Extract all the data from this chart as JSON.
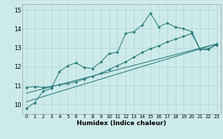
{
  "xlabel": "Humidex (Indice chaleur)",
  "xlim": [
    -0.5,
    23.5
  ],
  "ylim": [
    9.5,
    15.3
  ],
  "xticks": [
    0,
    1,
    2,
    3,
    4,
    5,
    6,
    7,
    8,
    9,
    10,
    11,
    12,
    13,
    14,
    15,
    16,
    17,
    18,
    19,
    20,
    21,
    22,
    23
  ],
  "yticks": [
    10,
    11,
    12,
    13,
    14,
    15
  ],
  "bg_color": "#cdeaea",
  "grid_color": "#add4d4",
  "line_color": "#2d7d7d",
  "wavy_x": [
    0,
    1,
    2,
    3,
    4,
    5,
    6,
    7,
    8,
    9,
    10,
    11,
    12,
    13,
    14,
    15,
    16,
    17,
    18,
    19,
    20,
    21,
    22,
    23
  ],
  "wavy_y": [
    9.8,
    10.1,
    10.7,
    10.85,
    11.75,
    12.05,
    12.2,
    11.95,
    11.9,
    12.25,
    12.7,
    12.75,
    13.75,
    13.85,
    14.2,
    14.82,
    14.1,
    14.3,
    14.1,
    14.0,
    13.85,
    12.9,
    12.9,
    13.2
  ],
  "smooth_x": [
    0,
    1,
    2,
    3,
    4,
    5,
    6,
    7,
    8,
    9,
    10,
    11,
    12,
    13,
    14,
    15,
    16,
    17,
    18,
    19,
    20,
    21,
    22,
    23
  ],
  "smooth_y": [
    10.9,
    10.95,
    10.9,
    10.95,
    11.05,
    11.1,
    11.2,
    11.35,
    11.5,
    11.65,
    11.85,
    12.05,
    12.25,
    12.5,
    12.75,
    12.95,
    13.1,
    13.3,
    13.45,
    13.6,
    13.75,
    12.9,
    12.95,
    13.15
  ],
  "line_straight1": [
    [
      0,
      23
    ],
    [
      10.6,
      13.2
    ]
  ],
  "line_straight2": [
    [
      0,
      23
    ],
    [
      10.15,
      13.2
    ]
  ]
}
